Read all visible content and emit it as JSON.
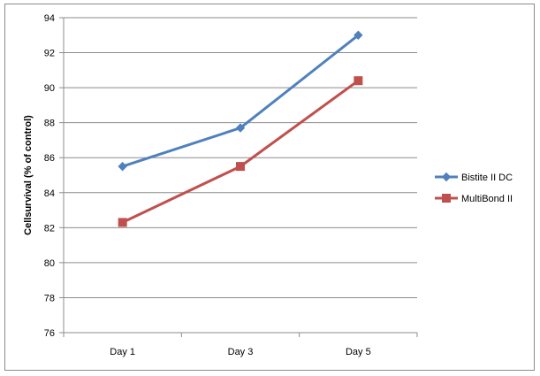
{
  "chart_data": {
    "type": "line",
    "categories": [
      "Day 1",
      "Day 3",
      "Day 5"
    ],
    "ylabel": "Cellsurvival (% of control)",
    "xlabel": "",
    "ylim": [
      76,
      94
    ],
    "yticks": [
      76,
      78,
      80,
      82,
      84,
      86,
      88,
      90,
      92,
      94
    ],
    "grid": true,
    "legend_position": "right",
    "series": [
      {
        "name": "Bistite II DC",
        "values": [
          85.5,
          87.7,
          93.0
        ],
        "color": "#4f81bd",
        "marker": "diamond"
      },
      {
        "name": "MultiBond II",
        "values": [
          82.3,
          85.5,
          90.4
        ],
        "color": "#c0504d",
        "marker": "square"
      }
    ]
  }
}
